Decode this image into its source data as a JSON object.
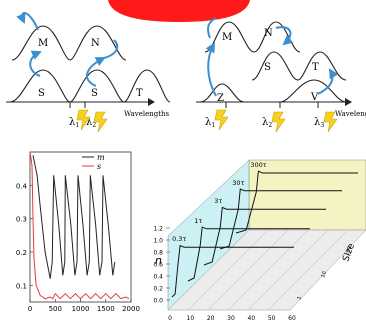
{
  "panel_a": {
    "levels_upper": [
      "M",
      "N"
    ],
    "levels_lower": [
      "S",
      "S",
      "T"
    ],
    "lambdas": [
      "λ",
      "λ"
    ],
    "lambda_subs": [
      "1",
      "2"
    ],
    "axis_label": "Wavelengths"
  },
  "panel_b": {
    "levels_upper": [
      "M",
      "N"
    ],
    "levels_middle": [
      "S",
      "T"
    ],
    "levels_lower": [
      "Z",
      "V"
    ],
    "lambdas": [
      "λ",
      "λ",
      "λ"
    ],
    "lambda_subs": [
      "1",
      "2",
      "3"
    ],
    "axis_label": "Wavelengths"
  },
  "colors": {
    "arrow": "#3a8fd0",
    "lightning": "#f7d21c",
    "red_curve": "#e53935",
    "panel_face": "#f6f3c2"
  },
  "chart_data": [
    {
      "type": "line",
      "title": "",
      "xlabel": "",
      "ylabel": "",
      "xlim": [
        0,
        2000
      ],
      "ylim": [
        0.05,
        0.5
      ],
      "x_ticks": [
        "0",
        "500",
        "1000",
        "1500",
        "2000"
      ],
      "y_ticks": [
        "0.1",
        "0.2",
        "0.3",
        "0.4"
      ],
      "legend_position": "top-right",
      "series": [
        {
          "name": "m",
          "color": "#222222",
          "x": [
            60,
            140,
            200,
            300,
            400,
            440,
            470,
            570,
            650,
            690,
            700,
            810,
            890,
            930,
            950,
            1050,
            1130,
            1175,
            1195,
            1300,
            1380,
            1425,
            1445,
            1550,
            1640,
            1680
          ],
          "y": [
            0.49,
            0.43,
            0.34,
            0.2,
            0.12,
            0.17,
            0.43,
            0.28,
            0.13,
            0.17,
            0.43,
            0.28,
            0.13,
            0.17,
            0.43,
            0.28,
            0.13,
            0.17,
            0.43,
            0.28,
            0.13,
            0.17,
            0.43,
            0.28,
            0.13,
            0.17
          ]
        },
        {
          "name": "s",
          "color": "#e53935",
          "x": [
            0,
            40,
            60,
            80,
            120,
            200,
            300,
            400,
            450,
            500,
            600,
            700,
            800,
            900,
            1000,
            1100,
            1200,
            1300,
            1400,
            1500,
            1600,
            1700,
            1800,
            1900,
            1960
          ],
          "y": [
            0.5,
            0.46,
            0.3,
            0.18,
            0.1,
            0.07,
            0.06,
            0.065,
            0.06,
            0.075,
            0.06,
            0.075,
            0.06,
            0.075,
            0.06,
            0.075,
            0.06,
            0.075,
            0.06,
            0.075,
            0.06,
            0.075,
            0.06,
            0.065,
            0.06
          ]
        }
      ]
    },
    {
      "type": "line",
      "title": "",
      "xlabel": "",
      "ylabel": "n",
      "zlabel": "Size",
      "ylim": [
        0,
        1.2
      ],
      "x_ticks": [
        "0",
        "10",
        "20",
        "30",
        "40",
        "50",
        "60"
      ],
      "y_ticks": [
        "0.0",
        "0.2",
        "0.4",
        "0.6",
        "0.8",
        "1.0",
        "1.2"
      ],
      "size_ticks": [
        "1",
        "10",
        "100"
      ],
      "annotations": [
        "0.3τ",
        "1τ",
        "3τ",
        "30τ",
        "300τ"
      ]
    }
  ]
}
